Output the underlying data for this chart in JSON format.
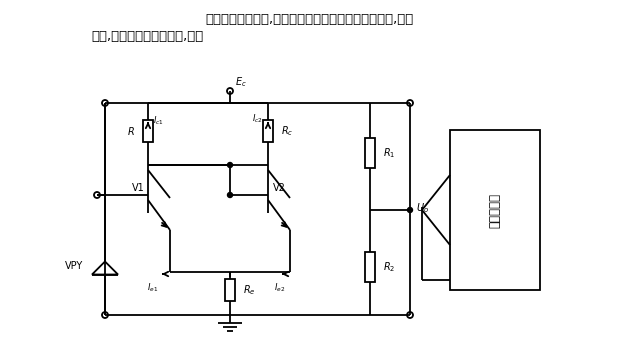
{
  "bg_color": "#ffffff",
  "line_color": "#000000",
  "fig_width": 6.3,
  "fig_height": 3.41,
  "dpi": 100,
  "title1": "设计比较放大器时,要考虑与其他部分直流电平的配合,电压",
  "title2": "增益,常采用分差放大电路,见图",
  "label_Ec": "$E_c$",
  "label_R": "$R$",
  "label_Rc": "$R_c$",
  "label_Ic1": "$I_{c1}$",
  "label_Ic2": "$I_{c2}$",
  "label_R1": "$R_1$",
  "label_R2": "$R_2$",
  "label_Uo": "$U_o$",
  "label_Re": "$R_e$",
  "label_Ie1": "$I_{e1}$",
  "label_Ie2": "$I_{e2}$",
  "label_V1": "V1",
  "label_V2": "V2",
  "label_VPY": "VPY",
  "label_box": "分差放大器"
}
